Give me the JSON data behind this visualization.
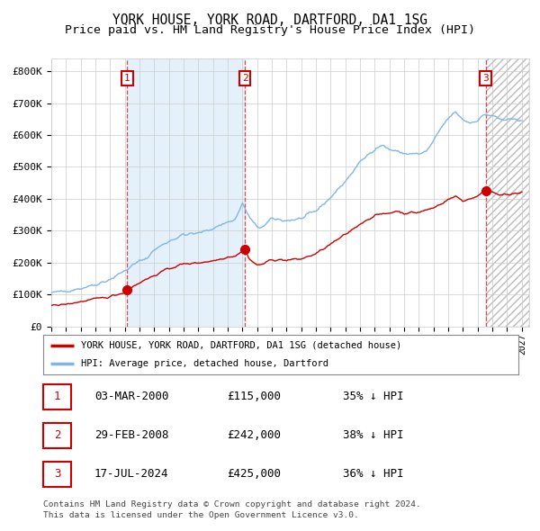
{
  "title": "YORK HOUSE, YORK ROAD, DARTFORD, DA1 1SG",
  "subtitle": "Price paid vs. HM Land Registry's House Price Index (HPI)",
  "title_fontsize": 10.5,
  "subtitle_fontsize": 9.5,
  "hpi_color": "#7eb6e8",
  "price_color": "#cc0000",
  "background_color": "#ffffff",
  "grid_color": "#cccccc",
  "ylim": [
    0,
    840000
  ],
  "xlim_start": 1995.0,
  "xlim_end": 2027.5,
  "yticks": [
    0,
    100000,
    200000,
    300000,
    400000,
    500000,
    600000,
    700000,
    800000
  ],
  "ytick_labels": [
    "£0",
    "£100K",
    "£200K",
    "£300K",
    "£400K",
    "£500K",
    "£600K",
    "£700K",
    "£800K"
  ],
  "xticks": [
    1995,
    1996,
    1997,
    1998,
    1999,
    2000,
    2001,
    2002,
    2003,
    2004,
    2005,
    2006,
    2007,
    2008,
    2009,
    2010,
    2011,
    2012,
    2013,
    2014,
    2015,
    2016,
    2017,
    2018,
    2019,
    2020,
    2021,
    2022,
    2023,
    2024,
    2025,
    2026,
    2027
  ],
  "sale1_x": 2000.17,
  "sale1_y": 115000,
  "sale1_label": "1",
  "sale2_x": 2008.16,
  "sale2_y": 242000,
  "sale2_label": "2",
  "sale3_x": 2024.54,
  "sale3_y": 425000,
  "sale3_label": "3",
  "legend_line1": "YORK HOUSE, YORK ROAD, DARTFORD, DA1 1SG (detached house)",
  "legend_line2": "HPI: Average price, detached house, Dartford",
  "table_row1": [
    "1",
    "03-MAR-2000",
    "£115,000",
    "35% ↓ HPI"
  ],
  "table_row2": [
    "2",
    "29-FEB-2008",
    "£242,000",
    "38% ↓ HPI"
  ],
  "table_row3": [
    "3",
    "17-JUL-2024",
    "£425,000",
    "36% ↓ HPI"
  ],
  "footnote1": "Contains HM Land Registry data © Crown copyright and database right 2024.",
  "footnote2": "This data is licensed under the Open Government Licence v3.0.",
  "shaded_region1_start": 2000.17,
  "shaded_region1_end": 2008.16,
  "hatch_region_start": 2024.54,
  "hatch_region_end": 2027.5
}
